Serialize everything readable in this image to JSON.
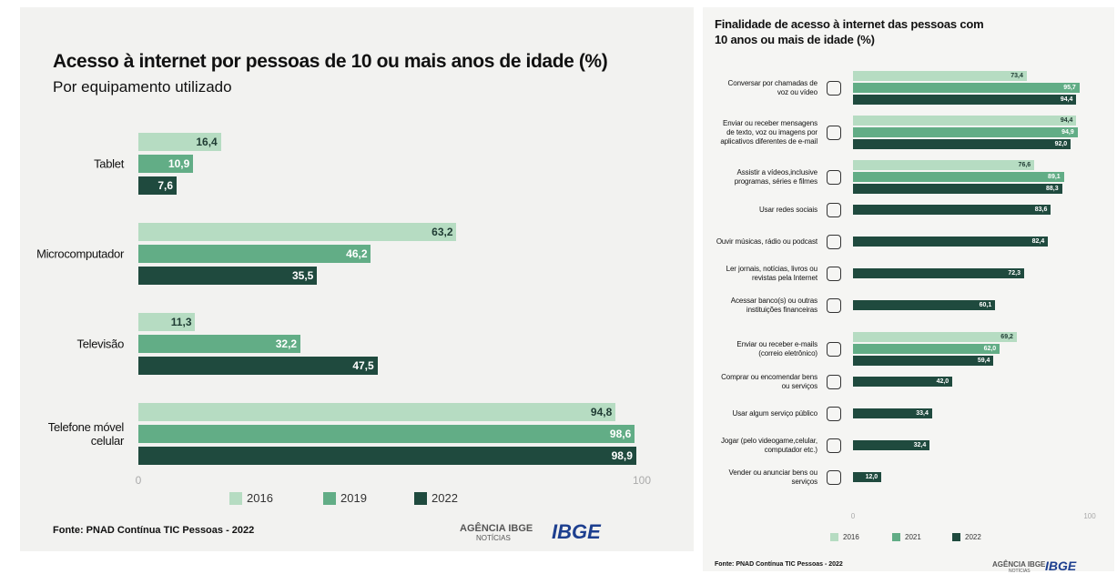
{
  "chart_data": [
    {
      "type": "bar",
      "orientation": "horizontal",
      "title": "Acesso à internet por pessoas de 10 ou mais anos de idade (%)",
      "subtitle": "Por equipamento utilizado",
      "categories": [
        "Tablet",
        "Microcomputador",
        "Televisão",
        "Telefone móvel celular"
      ],
      "series": [
        {
          "name": "2016",
          "color": "#b6dcc2",
          "values": [
            16.4,
            63.2,
            11.3,
            94.8
          ],
          "value_labels": [
            "16,4",
            "63,2",
            "11,3",
            "94,8"
          ]
        },
        {
          "name": "2019",
          "color": "#62ad86",
          "values": [
            10.9,
            46.2,
            32.2,
            98.6
          ],
          "value_labels": [
            "10,9",
            "46,2",
            "32,2",
            "98,6"
          ]
        },
        {
          "name": "2022",
          "color": "#1f4a3e",
          "values": [
            7.6,
            35.5,
            47.5,
            98.9
          ],
          "value_labels": [
            "7,6",
            "35,5",
            "47,5",
            "98,9"
          ]
        }
      ],
      "xlim": [
        0,
        100
      ],
      "xticks": [
        0,
        100
      ],
      "grid": false,
      "source": "Fonte: PNAD Contínua TIC Pessoas - 2022",
      "logos": [
        "AGÊNCIA IBGE",
        "NOTÍCIAS",
        "IBGE"
      ]
    },
    {
      "type": "bar",
      "orientation": "horizontal",
      "title": "Finalidade de acesso à internet das pessoas com 10 anos ou mais  de idade (%)",
      "categories": [
        "Conversar por chamadas de voz ou vídeo",
        "Enviar ou receber mensagens de texto, voz ou imagens por aplicativos diferentes de e-mail",
        "Assistir a vídeos,inclusive programas, séries e filmes",
        "Usar redes sociais",
        "Ouvir músicas, rádio ou podcast",
        "Ler jornais, notícias, livros ou revistas pela Internet",
        "Acessar banco(s) ou outras instituições financeiras",
        "Enviar ou receber e-mails (correio eletrônico)",
        "Comprar ou encomendar bens ou serviços",
        "Usar algum serviço público",
        "Jogar (pelo videogame,celular, computador etc.)",
        "Vender ou anunciar bens ou serviços"
      ],
      "series": [
        {
          "name": "2016",
          "color": "#b6dcc2",
          "values": [
            73.4,
            94.4,
            76.6,
            null,
            null,
            null,
            null,
            69.2,
            null,
            null,
            null,
            null
          ],
          "value_labels": [
            "73,4",
            "94,4",
            "76,6",
            null,
            null,
            null,
            null,
            "69,2",
            null,
            null,
            null,
            null
          ]
        },
        {
          "name": "2021",
          "color": "#62ad86",
          "values": [
            95.7,
            94.9,
            89.1,
            null,
            null,
            null,
            null,
            62.0,
            null,
            null,
            null,
            null
          ],
          "value_labels": [
            "95,7",
            "94,9",
            "89,1",
            null,
            null,
            null,
            null,
            "62,0",
            null,
            null,
            null,
            null
          ]
        },
        {
          "name": "2022",
          "color": "#1f4a3e",
          "values": [
            94.4,
            92.0,
            88.3,
            83.6,
            82.4,
            72.3,
            60.1,
            59.4,
            42.0,
            33.4,
            32.4,
            12.0
          ],
          "value_labels": [
            "94,4",
            "92,0",
            "88,3",
            "83,6",
            "82,4",
            "72,3",
            "60,1",
            "59,4",
            "42,0",
            "33,4",
            "32,4",
            "12,0"
          ]
        }
      ],
      "xlim": [
        0,
        100
      ],
      "xticks": [
        0,
        100
      ],
      "grid": false,
      "source": "Fonte: PNAD Contínua TIC Pessoas - 2022",
      "logos": [
        "AGÊNCIA IBGE",
        "NOTÍCIAS",
        "IBGE"
      ]
    }
  ]
}
